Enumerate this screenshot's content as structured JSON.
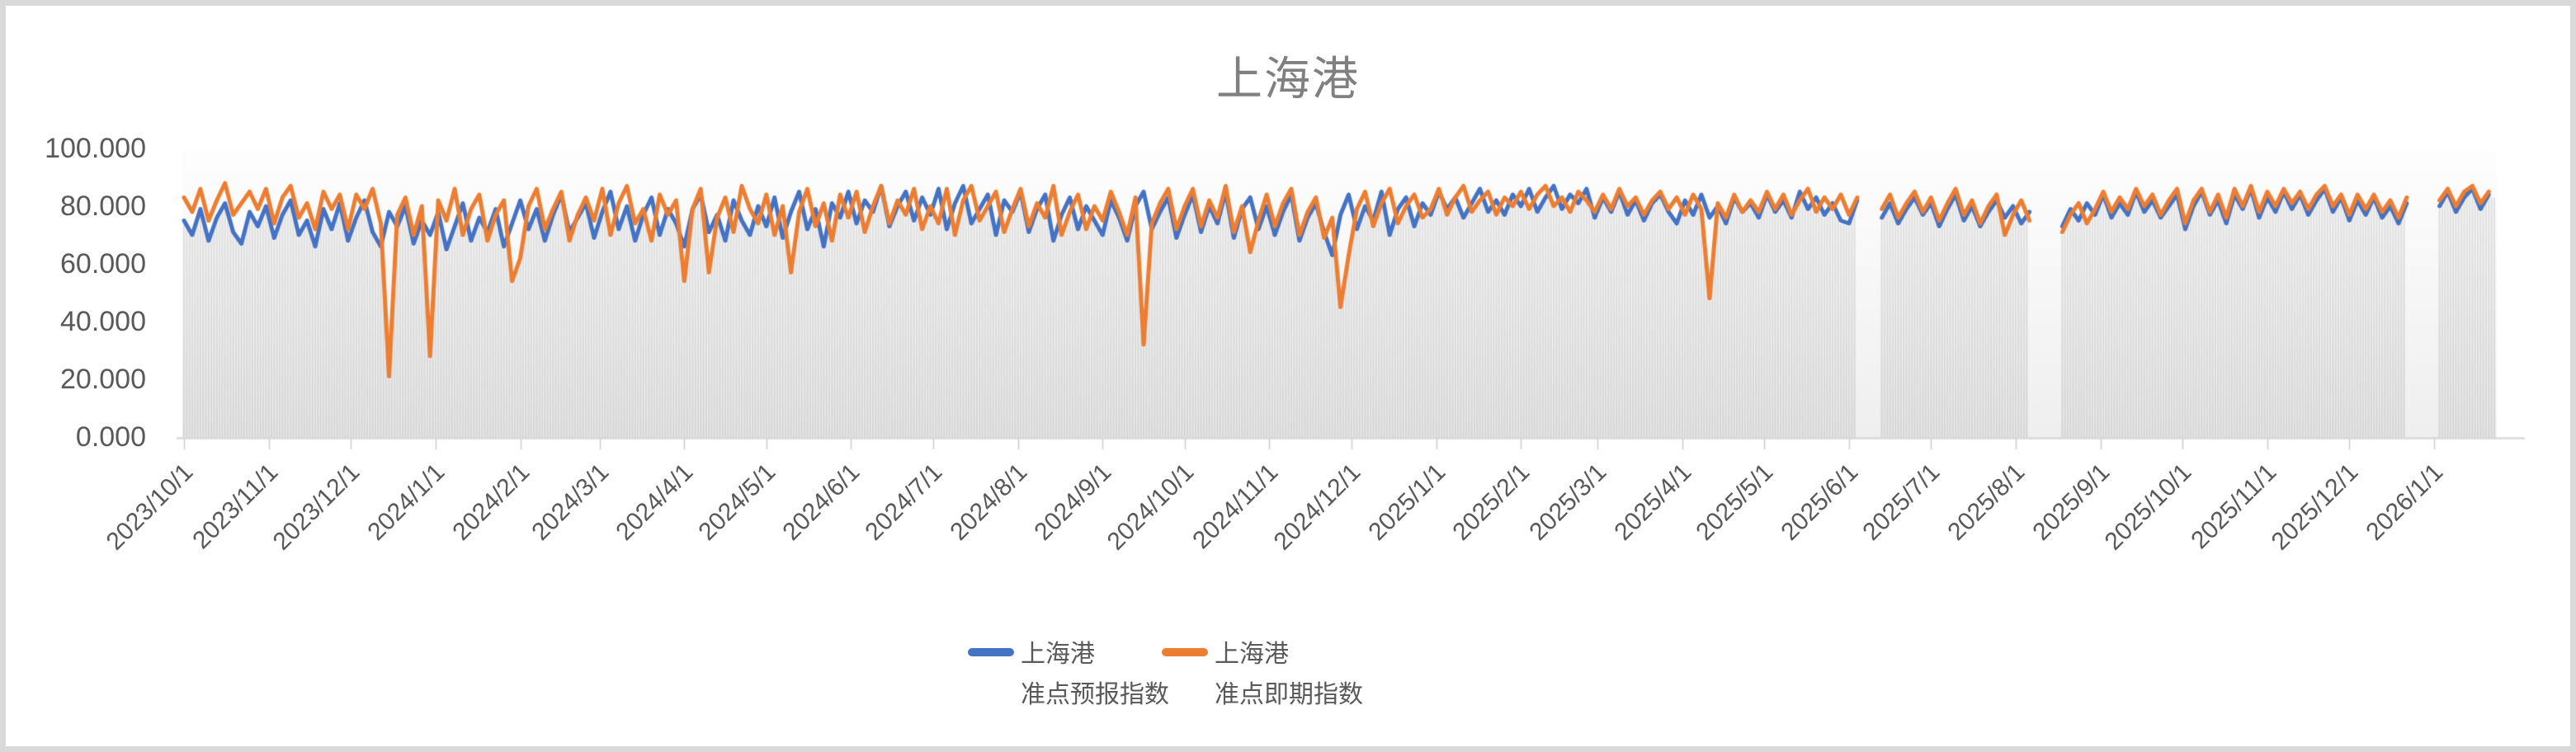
{
  "title": {
    "text": "上海港"
  },
  "legend": {
    "items": [
      {
        "label_line1": "上海港",
        "label_line2": "准点预报指数",
        "color": "#4472C4"
      },
      {
        "label_line1": "上海港",
        "label_line2": "准点即期指数",
        "color": "#ED7D31"
      }
    ]
  },
  "chart_data": {
    "type": "line",
    "title": "上海港",
    "xlabel": "",
    "ylabel": "",
    "ylim": [
      0,
      100
    ],
    "grid": false,
    "legend_position": "bottom",
    "y_tick_labels": [
      "100.000",
      "80.000",
      "60.000",
      "40.000",
      "20.000",
      "0.000"
    ],
    "y_tick_values": [
      100,
      80,
      60,
      40,
      20,
      0
    ],
    "x_tick_labels": [
      "2023/10/1",
      "2023/11/1",
      "2023/12/1",
      "2024/1/1",
      "2024/2/1",
      "2024/3/1",
      "2024/4/1",
      "2024/5/1",
      "2024/6/1",
      "2024/7/1",
      "2024/8/1",
      "2024/9/1",
      "2024/10/1",
      "2024/11/1",
      "2024/12/1",
      "2025/1/1",
      "2025/2/1",
      "2025/3/1",
      "2025/4/1",
      "2025/5/1",
      "2025/6/1",
      "2025/7/1",
      "2025/8/1",
      "2025/9/1",
      "2025/10/1",
      "2025/11/1",
      "2025/12/1",
      "2026/1/1"
    ],
    "x_tick_day_offsets": [
      0,
      31,
      61,
      92,
      123,
      152,
      183,
      213,
      244,
      274,
      305,
      336,
      366,
      397,
      427,
      458,
      489,
      517,
      548,
      578,
      609,
      639,
      670,
      701,
      731,
      762,
      792,
      823
    ],
    "start_date": "2023/10/1",
    "end_day": 845,
    "sample_step_days": 3,
    "gaps_day_ranges": [
      [
        614,
        619
      ],
      [
        677,
        686
      ],
      [
        814,
        822
      ]
    ],
    "background_bars": {
      "color_top": "#E6E6E6",
      "color_bottom": "#D6D6D6",
      "note": "daily gray bars under the lines"
    },
    "plot_bg": {
      "top": "#FEFEFE",
      "bottom": "#EFEFEF"
    },
    "axis_color": "#D9D9D9",
    "series": [
      {
        "name": "上海港 准点预报指数",
        "color": "#4472C4",
        "values": [
          75,
          70,
          79,
          68,
          76,
          81,
          71,
          67,
          78,
          73,
          80,
          69,
          77,
          82,
          70,
          75,
          66,
          79,
          72,
          81,
          68,
          76,
          82,
          71,
          66,
          78,
          73,
          80,
          67,
          75,
          70,
          78,
          65,
          73,
          81,
          68,
          76,
          71,
          79,
          66,
          74,
          82,
          72,
          79,
          68,
          77,
          84,
          71,
          76,
          81,
          69,
          78,
          85,
          72,
          80,
          68,
          77,
          83,
          70,
          79,
          74,
          66,
          79,
          84,
          71,
          77,
          68,
          82,
          75,
          70,
          80,
          73,
          83,
          69,
          78,
          85,
          72,
          79,
          66,
          81,
          76,
          85,
          74,
          82,
          78,
          87,
          73,
          80,
          85,
          75,
          83,
          77,
          86,
          72,
          81,
          87,
          74,
          79,
          84,
          70,
          82,
          78,
          85,
          71,
          79,
          84,
          68,
          77,
          83,
          72,
          80,
          75,
          70,
          82,
          76,
          68,
          80,
          85,
          72,
          78,
          83,
          69,
          77,
          84,
          71,
          80,
          74,
          85,
          69,
          79,
          83,
          72,
          80,
          70,
          78,
          84,
          68,
          76,
          81,
          71,
          63,
          77,
          84,
          72,
          80,
          75,
          85,
          70,
          79,
          83,
          73,
          81,
          77,
          85,
          79,
          83,
          76,
          81,
          86,
          78,
          82,
          77,
          84,
          80,
          86,
          78,
          83,
          87,
          79,
          84,
          81,
          86,
          76,
          83,
          78,
          85,
          77,
          82,
          75,
          81,
          84,
          78,
          74,
          82,
          77,
          84,
          76,
          80,
          74,
          83,
          78,
          81,
          76,
          84,
          78,
          82,
          76,
          85,
          79,
          83,
          77,
          81,
          75,
          74,
          82,
          null,
          null,
          76,
          81,
          74,
          79,
          83,
          77,
          81,
          73,
          79,
          84,
          75,
          80,
          73,
          78,
          82,
          76,
          80,
          74,
          78,
          null,
          null,
          null,
          73,
          79,
          75,
          81,
          77,
          84,
          76,
          81,
          77,
          85,
          78,
          82,
          76,
          80,
          84,
          72,
          80,
          85,
          77,
          82,
          74,
          84,
          79,
          86,
          76,
          83,
          78,
          85,
          79,
          84,
          77,
          82,
          86,
          78,
          83,
          75,
          82,
          77,
          83,
          76,
          80,
          74,
          81,
          null,
          null,
          null,
          80,
          85,
          78,
          83,
          86,
          79,
          84
        ]
      },
      {
        "name": "上海港 准点即期指数",
        "color": "#ED7D31",
        "values": [
          83,
          78,
          86,
          75,
          82,
          88,
          77,
          81,
          85,
          79,
          86,
          74,
          83,
          87,
          76,
          81,
          72,
          85,
          79,
          84,
          72,
          84,
          79,
          86,
          74,
          21,
          77,
          83,
          70,
          80,
          28,
          82,
          75,
          86,
          70,
          79,
          84,
          68,
          77,
          82,
          54,
          62,
          80,
          86,
          72,
          79,
          85,
          68,
          77,
          83,
          75,
          86,
          70,
          81,
          87,
          74,
          79,
          68,
          84,
          77,
          82,
          54,
          79,
          86,
          57,
          76,
          83,
          71,
          87,
          79,
          74,
          84,
          70,
          80,
          57,
          78,
          86,
          73,
          81,
          68,
          84,
          76,
          85,
          71,
          80,
          87,
          74,
          82,
          77,
          86,
          72,
          80,
          74,
          86,
          70,
          82,
          87,
          75,
          80,
          85,
          71,
          79,
          86,
          73,
          81,
          76,
          87,
          70,
          78,
          84,
          72,
          80,
          75,
          85,
          78,
          70,
          83,
          32,
          74,
          81,
          86,
          72,
          80,
          86,
          73,
          82,
          76,
          87,
          71,
          80,
          64,
          75,
          84,
          73,
          81,
          86,
          70,
          78,
          83,
          69,
          76,
          45,
          63,
          79,
          85,
          73,
          81,
          86,
          74,
          80,
          84,
          76,
          79,
          86,
          77,
          83,
          87,
          78,
          82,
          85,
          77,
          83,
          80,
          85,
          79,
          84,
          87,
          80,
          83,
          78,
          85,
          82,
          78,
          84,
          79,
          86,
          80,
          83,
          77,
          82,
          85,
          79,
          83,
          77,
          84,
          79,
          48,
          81,
          76,
          84,
          78,
          82,
          78,
          85,
          79,
          84,
          77,
          82,
          86,
          78,
          83,
          79,
          84,
          77,
          83,
          null,
          null,
          79,
          84,
          76,
          81,
          85,
          78,
          83,
          75,
          81,
          86,
          77,
          82,
          74,
          80,
          84,
          70,
          77,
          82,
          75,
          null,
          null,
          null,
          71,
          77,
          81,
          74,
          79,
          85,
          78,
          83,
          79,
          86,
          80,
          84,
          77,
          82,
          86,
          74,
          82,
          86,
          78,
          84,
          76,
          86,
          80,
          87,
          78,
          85,
          80,
          86,
          81,
          85,
          79,
          84,
          87,
          80,
          84,
          77,
          84,
          79,
          84,
          78,
          82,
          76,
          83,
          null,
          null,
          null,
          82,
          86,
          80,
          85,
          87,
          81,
          85
        ]
      }
    ]
  }
}
